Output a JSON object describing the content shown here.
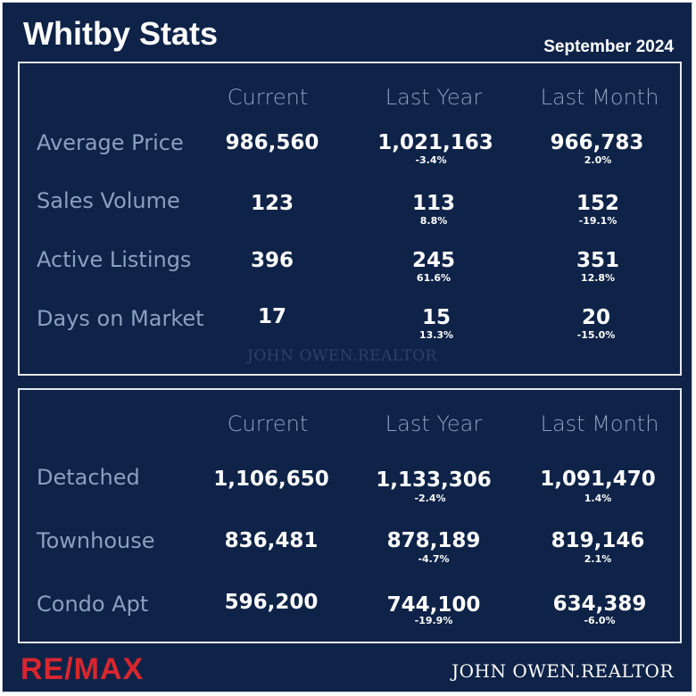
{
  "title": "Whitby Stats",
  "date": "September 2024",
  "columns": [
    "Current",
    "Last Year",
    "Last Month"
  ],
  "market": {
    "rows": [
      {
        "label": "Average Price",
        "current": "986,560",
        "last_year": "1,021,163",
        "last_year_change": "-3.4%",
        "last_month": "966,783",
        "last_month_change": "2.0%"
      },
      {
        "label": "Sales Volume",
        "current": "123",
        "last_year": "113",
        "last_year_change": "8.8%",
        "last_month": "152",
        "last_month_change": "-19.1%"
      },
      {
        "label": "Active Listings",
        "current": "396",
        "last_year": "245",
        "last_year_change": "61.6%",
        "last_month": "351",
        "last_month_change": "12.8%"
      },
      {
        "label": "Days on Market",
        "current": "17",
        "last_year": "15",
        "last_year_change": "13.3%",
        "last_month": "20",
        "last_month_change": "-15.0%"
      }
    ]
  },
  "types": {
    "rows": [
      {
        "label": "Detached",
        "current": "1,106,650",
        "last_year": "1,133,306",
        "last_year_change": "-2.4%",
        "last_month": "1,091,470",
        "last_month_change": "1.4%"
      },
      {
        "label": "Townhouse",
        "current": "836,481",
        "last_year": "878,189",
        "last_year_change": "-4.7%",
        "last_month": "819,146",
        "last_month_change": "2.1%"
      },
      {
        "label": "Condo Apt",
        "current": "596,200",
        "last_year": "744,100",
        "last_year_change": "-19.9%",
        "last_month": "634,389",
        "last_month_change": "-6.0%"
      }
    ]
  },
  "watermark": "JOHN OWEN.REALTOR",
  "brand": {
    "logo_text": "RE/MAX",
    "logo_color": "#d8262f"
  },
  "footer": "JOHN OWEN.REALTOR",
  "colors": {
    "background": "#0f2348",
    "label": "#8e9fbf"
  }
}
